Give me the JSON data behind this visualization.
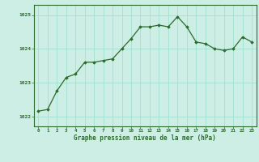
{
  "x": [
    0,
    1,
    2,
    3,
    4,
    5,
    6,
    7,
    8,
    9,
    10,
    11,
    12,
    13,
    14,
    15,
    16,
    17,
    18,
    19,
    20,
    21,
    22,
    23
  ],
  "y": [
    1022.15,
    1022.2,
    1022.75,
    1023.15,
    1023.25,
    1023.6,
    1023.6,
    1023.65,
    1023.7,
    1024.0,
    1024.3,
    1024.65,
    1024.65,
    1024.7,
    1024.65,
    1024.95,
    1024.65,
    1024.2,
    1024.15,
    1024.0,
    1023.95,
    1024.0,
    1024.35,
    1024.2
  ],
  "line_color": "#2d6a2d",
  "marker_color": "#2d6a2d",
  "bg_color": "#cceee4",
  "grid_color": "#99ddcc",
  "xlabel": "Graphe pression niveau de la mer (hPa)",
  "xlabel_color": "#2d6a2d",
  "tick_color": "#2d6a2d",
  "ylim": [
    1021.7,
    1025.3
  ],
  "yticks": [
    1022,
    1023,
    1024,
    1025
  ],
  "xticks": [
    0,
    1,
    2,
    3,
    4,
    5,
    6,
    7,
    8,
    9,
    10,
    11,
    12,
    13,
    14,
    15,
    16,
    17,
    18,
    19,
    20,
    21,
    22,
    23
  ],
  "border_color": "#2d6a2d"
}
